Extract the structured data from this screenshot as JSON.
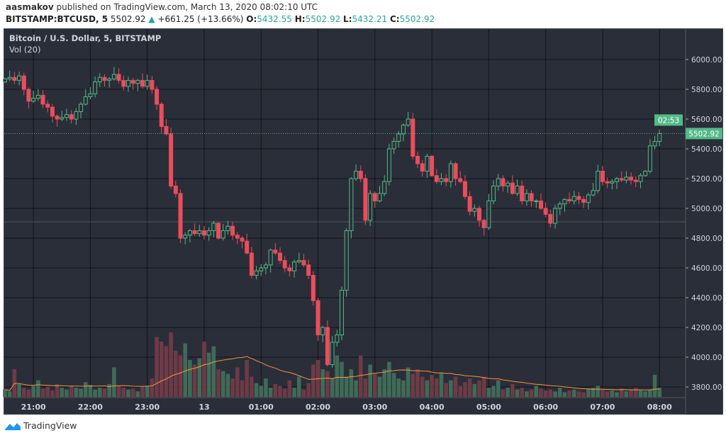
{
  "header": {
    "author": "aasmakov",
    "published_text": "published on TradingView.com, March 13, 2020 08:02:10 UTC",
    "symbol": "BITSTAMP:BTCUSD, 5",
    "last": "5502.92",
    "change": "+661.25 (+13.66%)",
    "o_label": "O:",
    "o": "5432.55",
    "h_label": "H:",
    "h": "5502.92",
    "l_label": "L:",
    "l": "5432.21",
    "c_label": "C:",
    "c": "5502.92"
  },
  "legend": {
    "title": "Bitcoin / U.S. Dollar, 5, BITSTAMP",
    "volume": "Vol (20)"
  },
  "footer": {
    "brand": "TradingView"
  },
  "colors": {
    "up": "#53b987",
    "down": "#eb4d5c",
    "vol_up": "#3f6b58",
    "vol_down": "#6e3a47",
    "ma": "#f7953b",
    "bg": "#2a2e39"
  },
  "chart_data": {
    "type": "candlestick",
    "interval_minutes": 5,
    "first_candle_time": "20:30",
    "first_open": 5850,
    "ylim": [
      3740,
      6080
    ],
    "y_ticks": [
      "6000.00",
      "5800.00",
      "5600.00",
      "5400.00",
      "5200.00",
      "5000.00",
      "4800.00",
      "4600.00",
      "4400.00",
      "4200.00",
      "4000.00",
      "3800.00"
    ],
    "x_ticks": [
      {
        "label": "21:00",
        "index": 6
      },
      {
        "label": "22:00",
        "index": 18
      },
      {
        "label": "23:00",
        "index": 30
      },
      {
        "label": "13",
        "index": 42
      },
      {
        "label": "01:00",
        "index": 54
      },
      {
        "label": "02:00",
        "index": 66
      },
      {
        "label": "03:00",
        "index": 78
      },
      {
        "label": "04:00",
        "index": 90
      },
      {
        "label": "05:00",
        "index": 102
      },
      {
        "label": "06:00",
        "index": 114
      },
      {
        "label": "07:00",
        "index": 126
      },
      {
        "label": "08:00",
        "index": 138
      }
    ],
    "close": [
      5870,
      5880,
      5860,
      5890,
      5800,
      5720,
      5740,
      5760,
      5700,
      5680,
      5620,
      5600,
      5610,
      5630,
      5600,
      5650,
      5700,
      5750,
      5770,
      5850,
      5880,
      5860,
      5870,
      5900,
      5860,
      5820,
      5860,
      5840,
      5860,
      5820,
      5860,
      5800,
      5700,
      5550,
      5500,
      5150,
      5100,
      4800,
      4820,
      4850,
      4830,
      4850,
      4820,
      4850,
      4900,
      4800,
      4850,
      4880,
      4820,
      4800,
      4780,
      4700,
      4550,
      4580,
      4600,
      4620,
      4720,
      4700,
      4650,
      4600,
      4580,
      4640,
      4650,
      4620,
      4550,
      4380,
      4150,
      4200,
      3950,
      4100,
      4150,
      4450,
      4850,
      5200,
      5250,
      5200,
      4920,
      5100,
      5050,
      5100,
      5180,
      5400,
      5450,
      5500,
      5560,
      5600,
      5350,
      5300,
      5250,
      5350,
      5220,
      5180,
      5200,
      5180,
      5300,
      5200,
      5180,
      5080,
      4980,
      5000,
      4920,
      4870,
      5050,
      5150,
      5200,
      5150,
      5170,
      5100,
      5150,
      5050,
      5100,
      5050,
      5050,
      5000,
      4960,
      4900,
      5000,
      5030,
      5060,
      5050,
      5080,
      5060,
      5040,
      5090,
      5120,
      5250,
      5180,
      5170,
      5180,
      5200,
      5190,
      5210,
      5190,
      5180,
      5220,
      5250,
      5420,
      5450,
      5502.92
    ],
    "volume": [
      8,
      6,
      30,
      14,
      10,
      8,
      12,
      18,
      9,
      11,
      7,
      14,
      10,
      8,
      12,
      10,
      9,
      16,
      13,
      8,
      10,
      9,
      14,
      32,
      12,
      10,
      8,
      9,
      6,
      11,
      12,
      20,
      65,
      60,
      55,
      70,
      50,
      45,
      58,
      40,
      35,
      42,
      60,
      48,
      55,
      30,
      28,
      25,
      20,
      32,
      18,
      40,
      22,
      15,
      12,
      20,
      10,
      14,
      12,
      9,
      18,
      10,
      22,
      8,
      15,
      35,
      40,
      30,
      28,
      20,
      45,
      38,
      22,
      30,
      18,
      45,
      20,
      35,
      25,
      22,
      30,
      38,
      26,
      20,
      18,
      32,
      25,
      30,
      22,
      18,
      24,
      20,
      26,
      15,
      18,
      22,
      12,
      16,
      20,
      14,
      18,
      22,
      10,
      12,
      18,
      8,
      10,
      14,
      8,
      10,
      6,
      8,
      12,
      9,
      7,
      8,
      6,
      10,
      5,
      7,
      8,
      6,
      5,
      9,
      10,
      12,
      8,
      6,
      7,
      5,
      9,
      6,
      8,
      10,
      7,
      6,
      8,
      24,
      10
    ]
  },
  "price_label": "5502.92",
  "countdown": "02:53"
}
